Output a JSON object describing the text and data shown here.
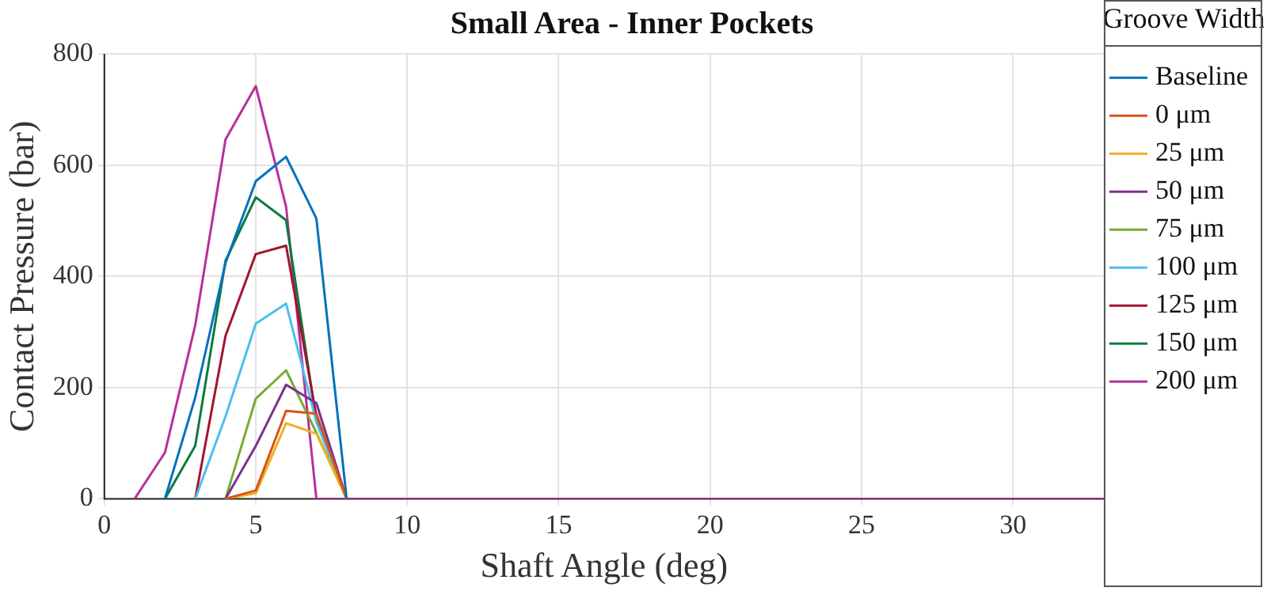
{
  "chart_data": {
    "type": "line",
    "title": "Small Area - Inner Pockets",
    "xlabel": "Shaft Angle (deg)",
    "ylabel": "Contact Pressure (bar)",
    "legend_title": "Groove Width",
    "x": [
      1,
      2,
      3,
      4,
      5,
      6,
      7,
      8,
      9,
      10,
      11,
      12,
      13,
      14,
      15,
      16,
      17,
      18,
      19,
      20,
      21,
      22,
      23,
      24,
      25,
      26,
      27,
      28,
      29,
      30,
      31,
      32,
      33
    ],
    "xlim": [
      0,
      33
    ],
    "xticks": [
      0,
      5,
      10,
      15,
      20,
      25,
      30
    ],
    "ylim": [
      0,
      800
    ],
    "yticks": [
      0,
      200,
      400,
      600,
      800
    ],
    "grid": true,
    "legend": "right",
    "marker": "none",
    "line_style": "solid",
    "series": [
      {
        "name": "Baseline",
        "color": "#0072bd",
        "values": [
          null,
          0,
          182,
          424,
          571,
          615,
          504,
          0,
          null,
          null,
          null,
          null,
          null,
          null,
          null,
          null,
          null,
          null,
          null,
          null,
          null,
          null,
          null,
          null,
          null,
          null,
          null,
          null,
          null,
          null,
          null,
          null,
          null
        ]
      },
      {
        "name": "0 μm",
        "color": "#d95319",
        "values": [
          null,
          null,
          null,
          0,
          15,
          158,
          153,
          0,
          null,
          null,
          null,
          null,
          null,
          null,
          null,
          null,
          null,
          null,
          null,
          null,
          null,
          null,
          null,
          null,
          null,
          null,
          null,
          null,
          null,
          null,
          null,
          null,
          null
        ]
      },
      {
        "name": "25 μm",
        "color": "#edb120",
        "values": [
          null,
          null,
          null,
          0,
          10,
          136,
          117,
          0,
          null,
          null,
          null,
          null,
          null,
          null,
          null,
          null,
          null,
          null,
          null,
          null,
          null,
          null,
          null,
          null,
          null,
          null,
          null,
          null,
          null,
          null,
          null,
          null,
          null
        ]
      },
      {
        "name": "50 μm",
        "color": "#7e2f8e",
        "values": [
          null,
          null,
          null,
          0,
          95,
          205,
          172,
          0,
          null,
          null,
          null,
          null,
          null,
          null,
          null,
          null,
          null,
          null,
          null,
          null,
          null,
          null,
          null,
          null,
          null,
          null,
          null,
          null,
          null,
          null,
          null,
          null,
          null
        ]
      },
      {
        "name": "75 μm",
        "color": "#77ac30",
        "values": [
          null,
          null,
          null,
          0,
          180,
          231,
          119,
          0,
          null,
          null,
          null,
          null,
          null,
          null,
          null,
          null,
          null,
          null,
          null,
          null,
          null,
          null,
          null,
          null,
          null,
          null,
          null,
          null,
          null,
          null,
          null,
          null,
          null
        ]
      },
      {
        "name": "100 μm",
        "color": "#4dbeee",
        "values": [
          null,
          null,
          0,
          148,
          315,
          351,
          138,
          0,
          null,
          null,
          null,
          null,
          null,
          null,
          null,
          null,
          null,
          null,
          null,
          null,
          null,
          null,
          null,
          null,
          null,
          null,
          null,
          null,
          null,
          null,
          null,
          null,
          null
        ]
      },
      {
        "name": "125 μm",
        "color": "#a2142f",
        "values": [
          null,
          null,
          0,
          293,
          440,
          455,
          148,
          0,
          null,
          null,
          null,
          null,
          null,
          null,
          null,
          null,
          null,
          null,
          null,
          null,
          null,
          null,
          null,
          null,
          null,
          null,
          null,
          null,
          null,
          null,
          null,
          null,
          null
        ]
      },
      {
        "name": "150 μm",
        "color": "#0b7a3e",
        "values": [
          null,
          0,
          95,
          428,
          542,
          501,
          140,
          0,
          null,
          null,
          null,
          null,
          null,
          null,
          null,
          null,
          null,
          null,
          null,
          null,
          null,
          null,
          null,
          null,
          null,
          null,
          null,
          null,
          null,
          null,
          null,
          null,
          null
        ]
      },
      {
        "name": "200 μm",
        "color": "#b5309c",
        "values": [
          0,
          83,
          312,
          646,
          742,
          525,
          0,
          0,
          0,
          0,
          0,
          0,
          0,
          0,
          0,
          0,
          0,
          0,
          0,
          0,
          0,
          0,
          0,
          0,
          0,
          0,
          0,
          0,
          0,
          0,
          0,
          0,
          0
        ]
      }
    ]
  }
}
